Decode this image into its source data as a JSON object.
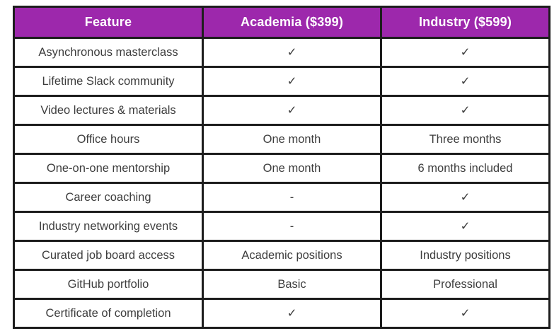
{
  "table": {
    "columns": [
      "Feature",
      "Academia ($399)",
      "Industry ($599)"
    ],
    "rows": [
      {
        "feature": "Asynchronous masterclass",
        "academia": "✓",
        "industry": "✓"
      },
      {
        "feature": "Lifetime Slack community",
        "academia": "✓",
        "industry": "✓"
      },
      {
        "feature": "Video lectures & materials",
        "academia": "✓",
        "industry": "✓"
      },
      {
        "feature": "Office hours",
        "academia": "One month",
        "industry": "Three months"
      },
      {
        "feature": "One-on-one mentorship",
        "academia": "One month",
        "industry": "6 months included"
      },
      {
        "feature": "Career coaching",
        "academia": "-",
        "industry": "✓"
      },
      {
        "feature": "Industry networking events",
        "academia": "-",
        "industry": "✓"
      },
      {
        "feature": "Curated job board access",
        "academia": "Academic positions",
        "industry": "Industry positions"
      },
      {
        "feature": "GitHub portfolio",
        "academia": "Basic",
        "industry": "Professional"
      },
      {
        "feature": "Certificate of completion",
        "academia": "✓",
        "industry": "✓"
      }
    ],
    "colors": {
      "header_bg": "#9d28ac",
      "header_text": "#ffffff",
      "border": "#1d1d1d",
      "body_text": "#3d3d3d"
    }
  }
}
